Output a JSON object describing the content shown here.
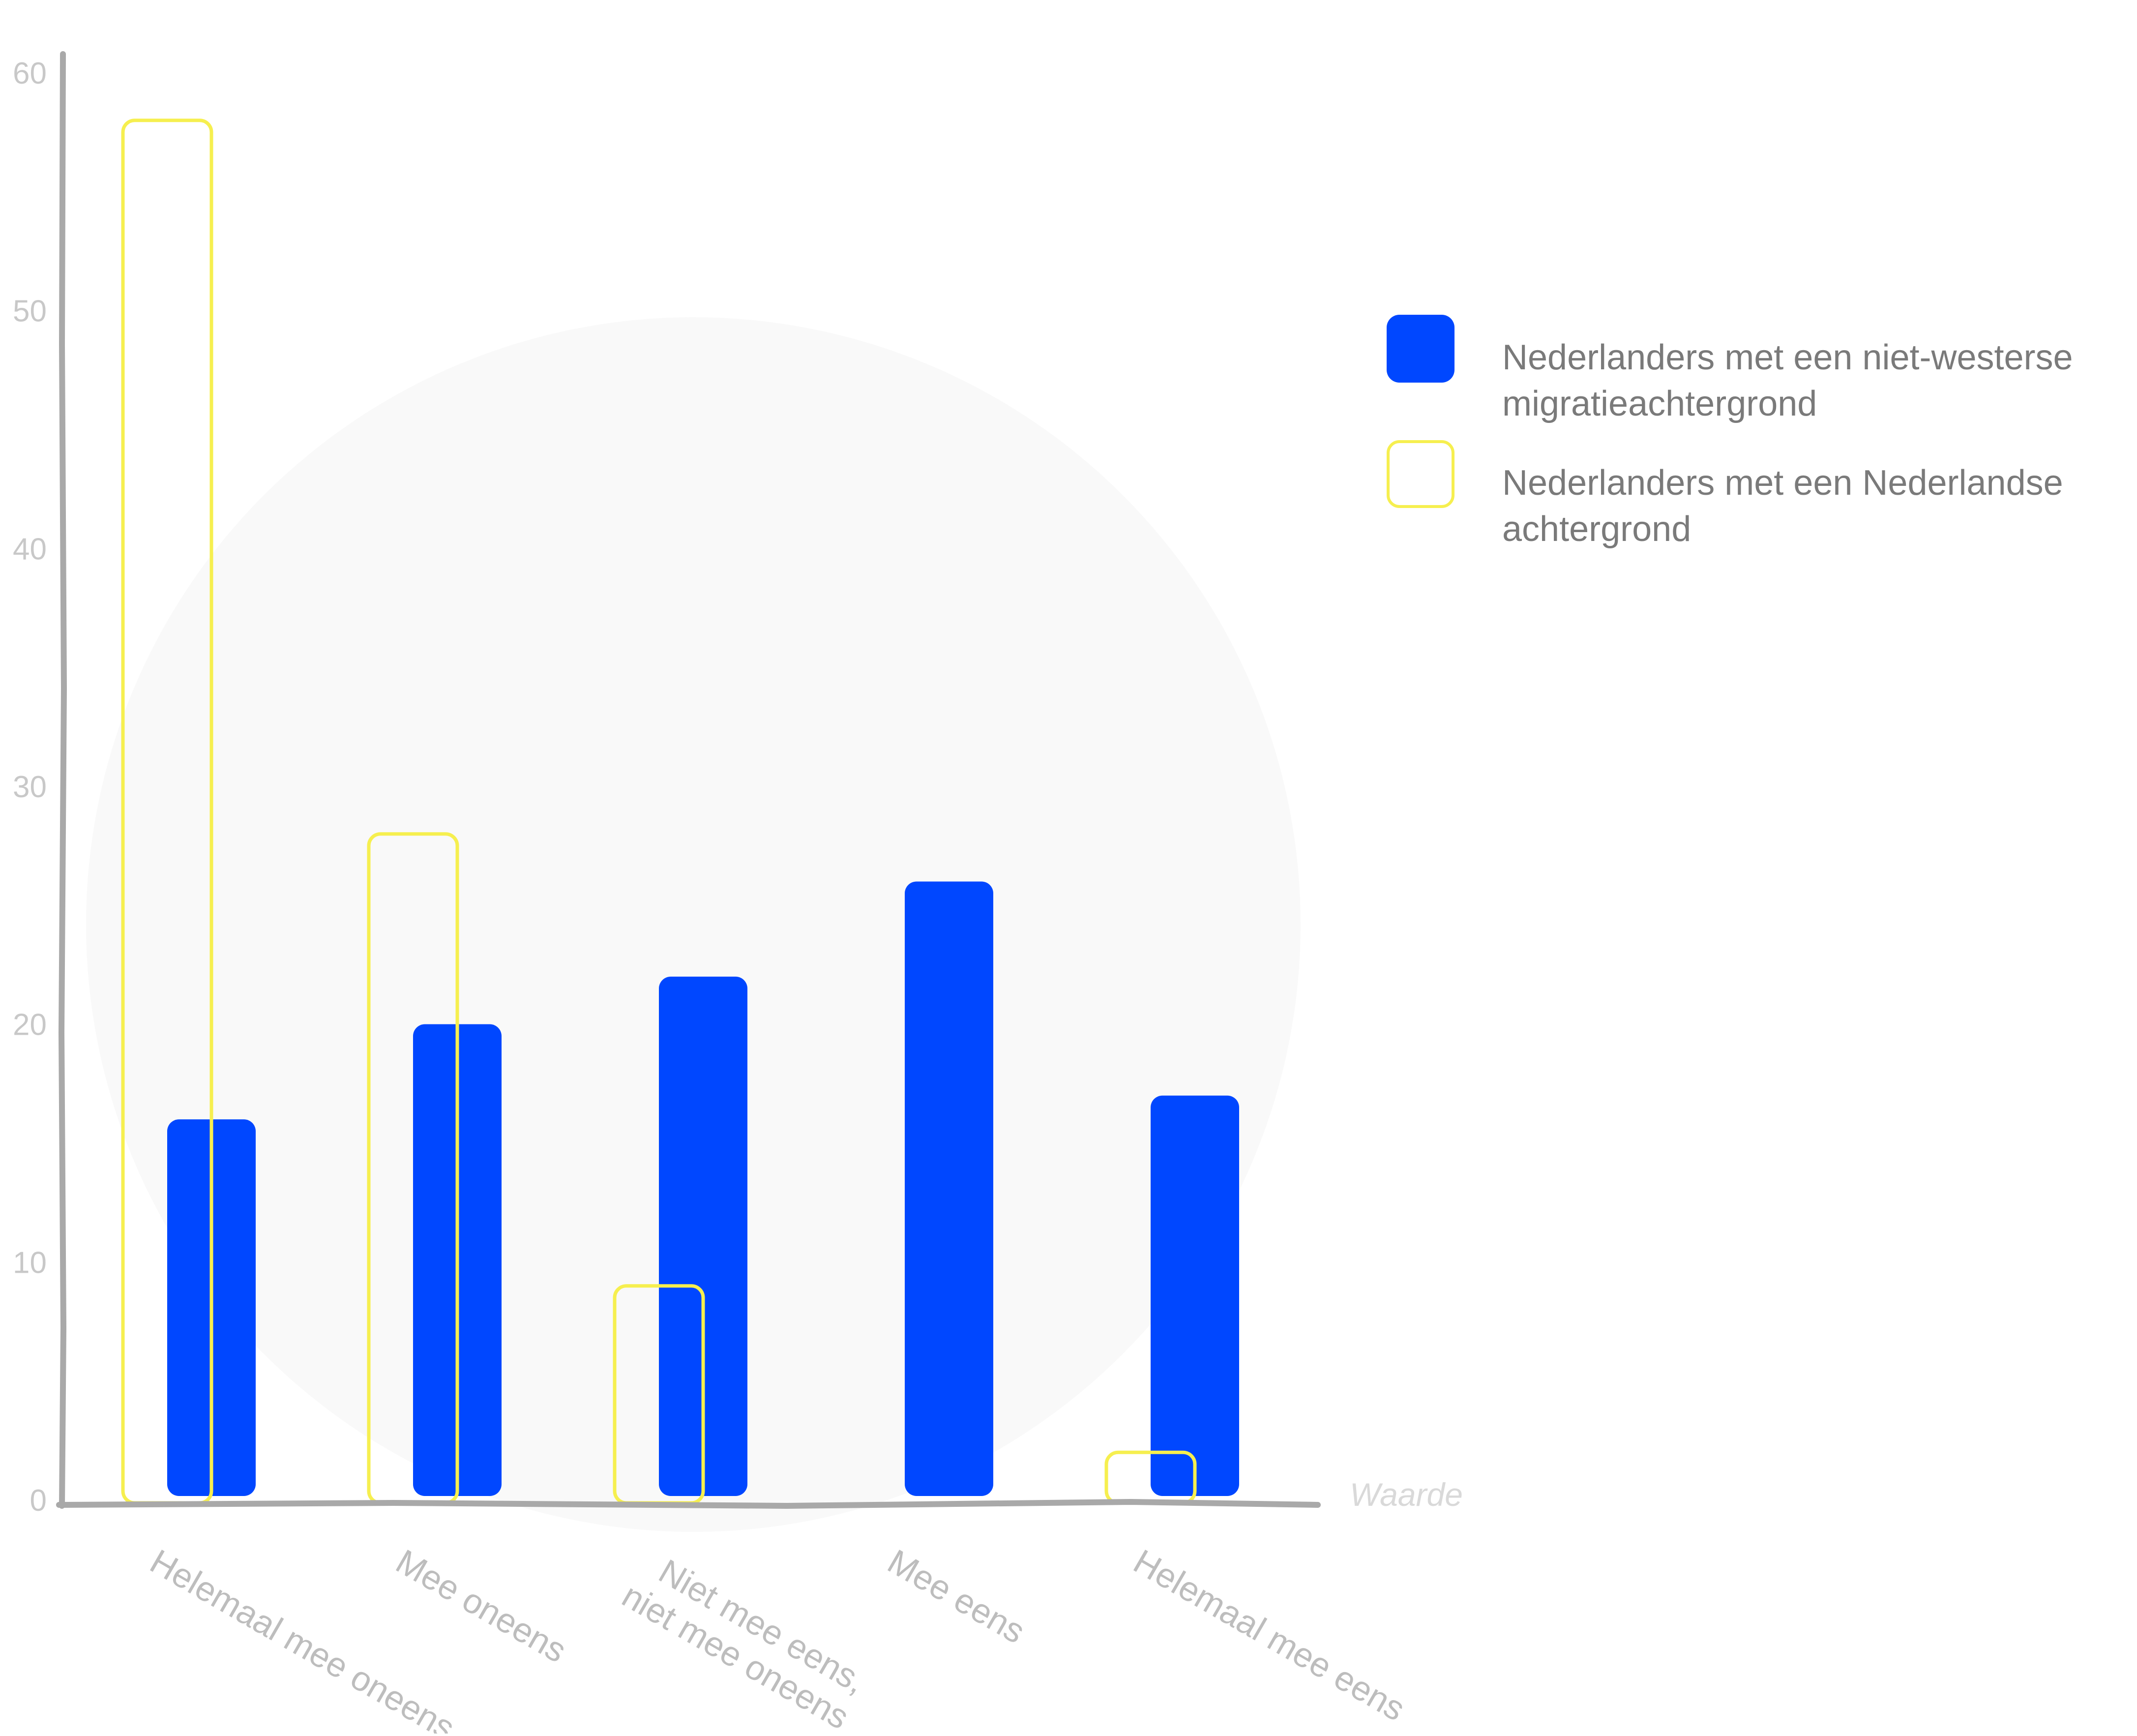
{
  "chart_data": {
    "type": "bar",
    "categories": [
      "Helemaal mee oneens",
      "Mee oneens",
      "Niet mee eens,\nniet mee oneens",
      "Mee eens",
      "Helemaal mee eens"
    ],
    "series": [
      {
        "name": "Nederlanders met een niet-westerse migratieachtergrond",
        "values": [
          16,
          20,
          22,
          26,
          17
        ],
        "color": "#0047ff",
        "style": "filled"
      },
      {
        "name": "Nederlanders met een Nederlandse achtergrond",
        "values": [
          58,
          28,
          9,
          0,
          2
        ],
        "color": "#f6ef4f",
        "style": "outline"
      }
    ],
    "yticks": [
      0,
      10,
      20,
      30,
      40,
      50,
      60
    ],
    "ylim": [
      0,
      60
    ],
    "unit_label": "Waarde",
    "grid": false,
    "legend_position": "right"
  }
}
